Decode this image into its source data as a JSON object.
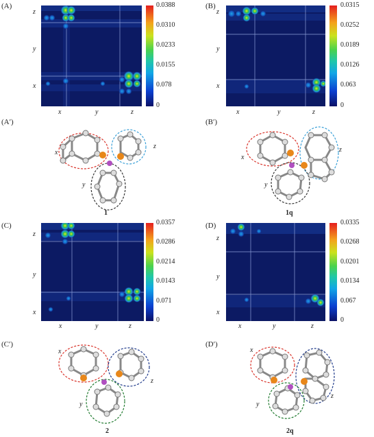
{
  "panels": [
    {
      "id": "A",
      "label": "(A)",
      "ticks": [
        "0.0388",
        "0.0310",
        "0.0233",
        "0.0155",
        "0.078",
        "0"
      ]
    },
    {
      "id": "B",
      "label": "(B)",
      "ticks": [
        "0.0315",
        "0.0252",
        "0.0189",
        "0.0126",
        "0.063",
        "0"
      ]
    },
    {
      "id": "C",
      "label": "(C)",
      "ticks": [
        "0.0357",
        "0.0286",
        "0.0214",
        "0.0143",
        "0.071",
        "0"
      ]
    },
    {
      "id": "D",
      "label": "(D)",
      "ticks": [
        "0.0335",
        "0.0268",
        "0.0201",
        "0.0134",
        "0.067",
        "0"
      ]
    }
  ],
  "axis_labels": {
    "x": "x",
    "y": "y",
    "z": "z"
  },
  "molecules": [
    {
      "id": "A_prime",
      "label": "(A′)",
      "compound": "1",
      "x": "x",
      "y": "y",
      "z": "z"
    },
    {
      "id": "B_prime",
      "label": "(B′)",
      "compound": "1q",
      "x": "x",
      "y": "y",
      "z": "z"
    },
    {
      "id": "C_prime",
      "label": "(C′)",
      "compound": "2",
      "x": "x",
      "y": "y",
      "z": "z"
    },
    {
      "id": "D_prime",
      "label": "(D′)",
      "compound": "2q",
      "x": "x",
      "y": "y",
      "z": "z"
    }
  ],
  "colors": {
    "bg": "#0c1a63",
    "ring_x": "#d9342b",
    "ring_z_top": "#3aa0d8",
    "ring_y_top": "#333333",
    "ring_z_bottom": "#1f3a8a",
    "ring_y_bottom": "#1f7a2e",
    "atom_metal": "#e8871a",
    "atom_center": "#b04fc0"
  }
}
